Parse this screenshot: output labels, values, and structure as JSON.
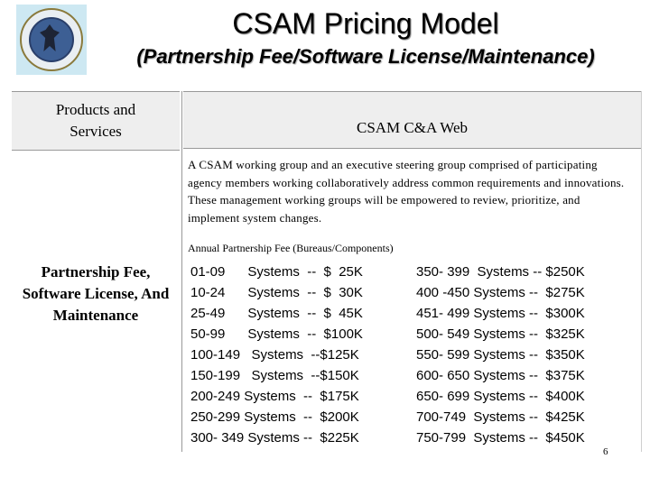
{
  "title": "CSAM Pricing Model",
  "subtitle": "(Partnership Fee/Software License/Maintenance)",
  "header": {
    "left": "Products and Services",
    "right": "CSAM C&A Web"
  },
  "description": "A CSAM working group and an executive steering group comprised of participating agency members working collaboratively address common requirements and innovations. These management working groups will be empowered to review, prioritize, and implement system changes.",
  "fee_header": "Annual Partnership Fee (Bureaus/Components)",
  "row_label": "Partnership Fee, Software License, And Maintenance",
  "tiers_left": [
    "01-09      Systems  --  $  25K",
    "10-24      Systems  --  $  30K",
    "25-49      Systems  --  $  45K",
    "50-99      Systems  --  $100K",
    "100-149   Systems  --$125K",
    "150-199   Systems  --$150K",
    "200-249 Systems  --  $175K",
    "250-299 Systems  --  $200K",
    "300- 349 Systems --  $225K"
  ],
  "tiers_right": [
    "350- 399  Systems -- $250K",
    "400 -450 Systems --  $275K",
    "451- 499 Systems --  $300K",
    "500- 549 Systems --  $325K",
    "550- 599 Systems --  $350K",
    "600- 650 Systems --  $375K",
    "650- 699 Systems --  $400K",
    "700-749  Systems --  $425K",
    "750-799  Systems --  $450K"
  ],
  "page_number": "6"
}
